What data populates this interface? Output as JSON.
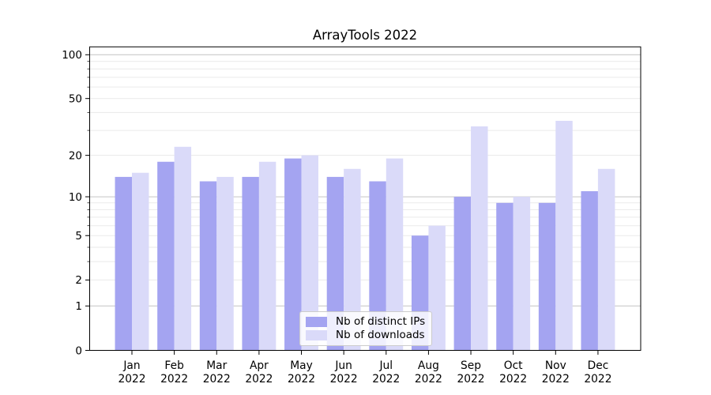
{
  "chart_data": {
    "type": "bar",
    "title": "ArrayTools 2022",
    "xlabel": "",
    "ylabel": "",
    "y_scale": "log1p",
    "ylim": [
      0,
      114
    ],
    "grid": true,
    "legend_position": "bottom-center-inside",
    "categories": [
      "Jan 2022",
      "Feb 2022",
      "Mar 2022",
      "Apr 2022",
      "May 2022",
      "Jun 2022",
      "Jul 2022",
      "Aug 2022",
      "Sep 2022",
      "Oct 2022",
      "Nov 2022",
      "Dec 2022"
    ],
    "series": [
      {
        "name": "Nb of distinct IPs",
        "color": "#a4a4f1",
        "values": [
          14,
          18,
          13,
          14,
          19,
          14,
          13,
          5,
          10,
          9,
          9,
          11
        ]
      },
      {
        "name": "Nb of downloads",
        "color": "#dadaf9",
        "values": [
          15,
          23,
          14,
          18,
          20,
          16,
          19,
          6,
          32,
          10,
          35,
          16
        ]
      }
    ],
    "y_ticks_labeled": [
      0,
      1,
      2,
      5,
      10,
      20,
      50,
      100
    ],
    "grid_major": [
      1,
      10,
      100
    ],
    "grid_minor": [
      2,
      3,
      4,
      5,
      6,
      7,
      8,
      9,
      20,
      30,
      40,
      50,
      60,
      70,
      80,
      90
    ]
  }
}
